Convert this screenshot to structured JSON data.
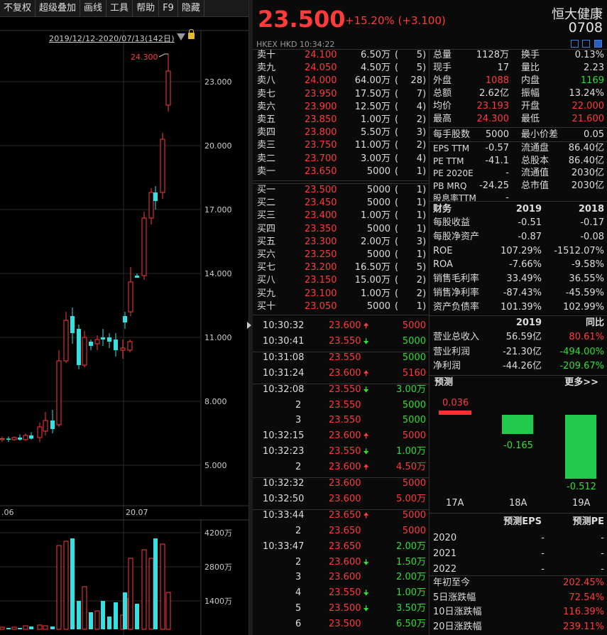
{
  "toolbar": {
    "items": [
      "不复权",
      "超级叠加",
      "画线",
      "工具",
      "帮助",
      "F9",
      "隐藏"
    ]
  },
  "chart_header": {
    "range": "2019/12/12-2020/07/13(142日)"
  },
  "chart_data": [
    {
      "type": "candlestick",
      "title": "",
      "y_ticks": [
        "23.000",
        "20.000",
        "17.000",
        "14.000",
        "11.000",
        "8.000",
        "5.000"
      ],
      "y_values": [
        23,
        20,
        17,
        14,
        11,
        8,
        5
      ],
      "x_ticks": [
        ".06",
        "20.07"
      ],
      "high_label": "24.300",
      "candles": [
        {
          "o": 6.2,
          "h": 6.35,
          "c": 6.25,
          "l": 6.1
        },
        {
          "o": 6.2,
          "h": 6.35,
          "c": 6.25,
          "l": 6.1
        },
        {
          "o": 6.25,
          "h": 6.35,
          "c": 6.2,
          "l": 6.1
        },
        {
          "o": 6.2,
          "h": 6.35,
          "c": 6.3,
          "l": 6.15
        },
        {
          "o": 6.3,
          "h": 6.45,
          "c": 6.2,
          "l": 6.15
        },
        {
          "o": 6.2,
          "h": 6.5,
          "c": 6.4,
          "l": 6.15
        },
        {
          "o": 6.4,
          "h": 6.55,
          "c": 6.25,
          "l": 6.2
        },
        {
          "o": 6.3,
          "h": 7.0,
          "c": 6.8,
          "l": 6.1
        },
        {
          "o": 6.6,
          "h": 7.5,
          "c": 7.1,
          "l": 6.4
        },
        {
          "o": 7.1,
          "h": 7.6,
          "c": 6.7,
          "l": 6.5
        },
        {
          "o": 6.9,
          "h": 10.4,
          "c": 9.9,
          "l": 6.8
        },
        {
          "o": 9.9,
          "h": 12.2,
          "c": 11.8,
          "l": 9.8
        },
        {
          "o": 12.0,
          "h": 12.4,
          "c": 11.2,
          "l": 10.7
        },
        {
          "o": 11.4,
          "h": 11.6,
          "c": 9.7,
          "l": 9.5
        },
        {
          "o": 9.7,
          "h": 11.3,
          "c": 11.0,
          "l": 9.6
        },
        {
          "o": 10.8,
          "h": 10.9,
          "c": 10.6,
          "l": 10.4
        },
        {
          "o": 10.7,
          "h": 11.1,
          "c": 10.9,
          "l": 10.4
        },
        {
          "o": 11.0,
          "h": 11.4,
          "c": 10.9,
          "l": 10.6
        },
        {
          "o": 11.0,
          "h": 11.2,
          "c": 10.8,
          "l": 10.5
        },
        {
          "o": 10.9,
          "h": 11.2,
          "c": 10.4,
          "l": 10.1
        },
        {
          "o": 10.4,
          "h": 10.9,
          "c": 10.5,
          "l": 10.0
        },
        {
          "o": 10.4,
          "h": 10.9,
          "c": 10.8,
          "l": 10.3
        },
        {
          "o": 12.0,
          "h": 12.2,
          "c": 11.7,
          "l": 11.4
        },
        {
          "o": 12.2,
          "h": 14.3,
          "c": 13.6,
          "l": 12.0
        },
        {
          "o": 13.9,
          "h": 14.0,
          "c": 13.8,
          "l": 13.8
        },
        {
          "o": 13.9,
          "h": 16.9,
          "c": 16.6,
          "l": 13.7
        },
        {
          "o": 16.6,
          "h": 18.0,
          "c": 17.8,
          "l": 16.3
        },
        {
          "o": 17.8,
          "h": 18.1,
          "c": 17.4,
          "l": 17.0
        },
        {
          "o": 17.8,
          "h": 20.6,
          "c": 20.3,
          "l": 17.5
        },
        {
          "o": 21.9,
          "h": 24.3,
          "c": 23.5,
          "l": 21.6
        }
      ],
      "volume_ticks": [
        "4200万",
        "2800万",
        "1400万"
      ],
      "volume_values": [
        4200,
        2800,
        1400
      ]
    }
  ],
  "quote": {
    "price": "23.500",
    "change": "+15.20%  (+3.100)",
    "name": "恒大健康",
    "code": "0708",
    "market": "HKEX  HKD  10:34:22"
  },
  "asks": [
    [
      "卖十",
      "24.100",
      "6.50万",
      "5"
    ],
    [
      "卖九",
      "24.050",
      "4.50万",
      "5"
    ],
    [
      "卖八",
      "24.000",
      "64.00万",
      "28"
    ],
    [
      "卖七",
      "23.950",
      "17.50万",
      "7"
    ],
    [
      "卖六",
      "23.900",
      "12.50万",
      "4"
    ],
    [
      "卖五",
      "23.850",
      "1.00万",
      "2"
    ],
    [
      "卖四",
      "23.800",
      "5.50万",
      "3"
    ],
    [
      "卖三",
      "23.750",
      "11.00万",
      "2"
    ],
    [
      "卖二",
      "23.700",
      "3.00万",
      "4"
    ],
    [
      "卖一",
      "23.650",
      "5000",
      "1"
    ]
  ],
  "bids": [
    [
      "买一",
      "23.500",
      "5000",
      "1"
    ],
    [
      "买二",
      "23.450",
      "5000",
      "1"
    ],
    [
      "买三",
      "23.400",
      "1.00万",
      "1"
    ],
    [
      "买四",
      "23.350",
      "5000",
      "1"
    ],
    [
      "买五",
      "23.300",
      "2.00万",
      "3"
    ],
    [
      "买六",
      "23.250",
      "5000",
      "1"
    ],
    [
      "买七",
      "23.200",
      "16.50万",
      "5"
    ],
    [
      "买八",
      "23.150",
      "15.00万",
      "2"
    ],
    [
      "买九",
      "23.100",
      "1.00万",
      "2"
    ],
    [
      "买十",
      "23.050",
      "5000",
      "1"
    ]
  ],
  "stats": [
    [
      "总量",
      "1128万",
      "white",
      "换手",
      "0.13%",
      "white"
    ],
    [
      "现手",
      "17",
      "white",
      "量比",
      "2.23",
      "white"
    ],
    [
      "外盘",
      "1088",
      "red",
      "内盘",
      "1169",
      "green"
    ],
    [
      "总额",
      "2.62亿",
      "white",
      "振幅",
      "13.24%",
      "white"
    ],
    [
      "均价",
      "23.193",
      "red",
      "开盘",
      "22.000",
      "red"
    ],
    [
      "最高",
      "24.300",
      "red",
      "最低",
      "21.600",
      "red"
    ]
  ],
  "stats2": [
    [
      "每手股数",
      "5000",
      "最小价差",
      "0.05"
    ]
  ],
  "stats3": [
    [
      "EPS TTM",
      "-0.57",
      "流通盘",
      "86.40亿"
    ],
    [
      "PE TTM",
      "-41.1",
      "总股本",
      "86.40亿"
    ],
    [
      "PE 2020E",
      "-",
      "流通值",
      "2030亿"
    ],
    [
      "PB MRQ",
      "-24.25",
      "总市值",
      "2030亿"
    ],
    [
      "股息率TTM",
      "-",
      "",
      ""
    ]
  ],
  "fin": {
    "title": "财务",
    "y1": "2019",
    "y2": "2018",
    "rows": [
      [
        "每股收益",
        "-0.51",
        "-0.17"
      ],
      [
        "每股净资产",
        "-0.87",
        "-0.08"
      ],
      [
        "ROE",
        "107.29%",
        "-1512.07%"
      ],
      [
        "ROA",
        "-7.66%",
        "-9.58%"
      ],
      [
        "销售毛利率",
        "33.49%",
        "36.55%"
      ],
      [
        "销售净利率",
        "-87.43%",
        "-45.59%"
      ],
      [
        "资产负债率",
        "101.39%",
        "102.99%"
      ]
    ]
  },
  "income": {
    "y1": "2019",
    "y2": "同比",
    "rows": [
      [
        "营业总收入",
        "56.59亿",
        "80.61%",
        "red"
      ],
      [
        "营业利润",
        "-21.30亿",
        "-494.00%",
        "green"
      ],
      [
        "净利润",
        "-44.26亿",
        "-209.67%",
        "green"
      ]
    ]
  },
  "forecast": {
    "title": "预测",
    "more": "更多>>",
    "bars": [
      {
        "label": "17A",
        "value": 0.036,
        "text": "0.036"
      },
      {
        "label": "18A",
        "value": -0.165,
        "text": "-0.165"
      },
      {
        "label": "19A",
        "value": -0.512,
        "text": "-0.512"
      }
    ],
    "col1": "预测EPS",
    "col2": "预测PE",
    "rows": [
      [
        "2020",
        "-",
        "-"
      ],
      [
        "2021",
        "-",
        "-"
      ],
      [
        "2022",
        "-",
        "-"
      ]
    ]
  },
  "perf": [
    [
      "年初至今",
      "202.45%"
    ],
    [
      "5日涨跌幅",
      "72.54%"
    ],
    [
      "10日涨跌幅",
      "116.39%"
    ],
    [
      "20日涨跌幅",
      "239.11%"
    ]
  ],
  "ticks": [
    {
      "t": "10:30:32",
      "p": "23.600",
      "d": "up",
      "v": "5000",
      "vc": "red"
    },
    {
      "t": "10:30:41",
      "p": "23.550",
      "d": "down",
      "v": "5000",
      "vc": "green"
    },
    {
      "t": "10:31:08",
      "p": "23.550",
      "d": "",
      "v": "5000",
      "vc": "green"
    },
    {
      "t": "10:31:24",
      "p": "23.600",
      "d": "up",
      "v": "5160",
      "vc": "red"
    },
    {
      "t": "10:32:08",
      "p": "23.550",
      "d": "down",
      "v": "3.00万",
      "vc": "green"
    },
    {
      "t": "2",
      "p": "23.550",
      "d": "",
      "v": "5000",
      "vc": "green"
    },
    {
      "t": "3",
      "p": "23.550",
      "d": "",
      "v": "5000",
      "vc": "green"
    },
    {
      "t": "10:32:15",
      "p": "23.600",
      "d": "up",
      "v": "5000",
      "vc": "red"
    },
    {
      "t": "10:32:23",
      "p": "23.550",
      "d": "down",
      "v": "1.00万",
      "vc": "green"
    },
    {
      "t": "2",
      "p": "23.600",
      "d": "up",
      "v": "4.50万",
      "vc": "red"
    },
    {
      "t": "10:32:32",
      "p": "23.600",
      "d": "",
      "v": "5000",
      "vc": "red"
    },
    {
      "t": "10:32:50",
      "p": "23.600",
      "d": "",
      "v": "5.00万",
      "vc": "red"
    },
    {
      "t": "10:33:44",
      "p": "23.650",
      "d": "up",
      "v": "5000",
      "vc": "red"
    },
    {
      "t": "2",
      "p": "23.650",
      "d": "",
      "v": "5000",
      "vc": "red"
    },
    {
      "t": "10:33:47",
      "p": "23.650",
      "d": "",
      "v": "2.00万",
      "vc": "green"
    },
    {
      "t": "2",
      "p": "23.600",
      "d": "down",
      "v": "1.50万",
      "vc": "green"
    },
    {
      "t": "3",
      "p": "23.600",
      "d": "",
      "v": "2.00万",
      "vc": "green"
    },
    {
      "t": "4",
      "p": "23.550",
      "d": "down",
      "v": "1.00万",
      "vc": "green"
    },
    {
      "t": "5",
      "p": "23.500",
      "d": "down",
      "v": "3.50万",
      "vc": "green"
    },
    {
      "t": "6",
      "p": "23.500",
      "d": "",
      "v": "6.50万",
      "vc": "green"
    }
  ]
}
